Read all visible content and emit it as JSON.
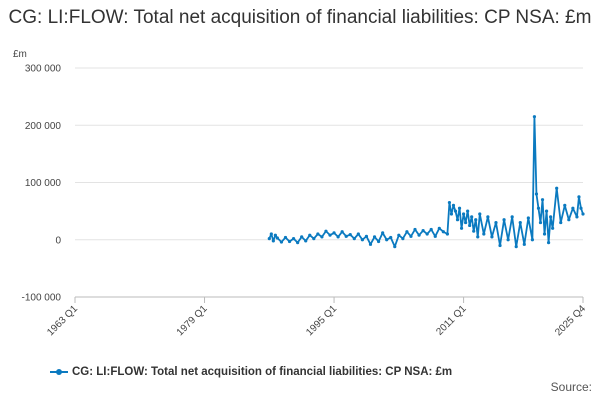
{
  "chart_data": {
    "type": "line",
    "title": "CG: LI:FLOW: Total net acquisition of financial liabilities: CP NSA: £m",
    "unit_label": "£m",
    "xlabel": "",
    "ylabel": "",
    "ylim": [
      -100000,
      300000
    ],
    "y_ticks": [
      -100000,
      0,
      100000,
      200000,
      300000
    ],
    "y_tick_labels": [
      "-100 000",
      "0",
      "100 000",
      "200 000",
      "300 000"
    ],
    "x_range": [
      1963.0,
      2025.75
    ],
    "x_ticks": [
      1963.0,
      1979.0,
      1995.0,
      2011.0,
      2025.75
    ],
    "x_tick_labels": [
      "1963 Q1",
      "1979 Q1",
      "1995 Q1",
      "2011 Q1",
      "2025 Q4"
    ],
    "grid": true,
    "legend_position": "bottom",
    "series": [
      {
        "name": "CG: LI:FLOW: Total net acquisition of financial liabilities: CP NSA: £m",
        "color": "#0b7ac0",
        "x": [
          1987.0,
          1987.25,
          1987.5,
          1987.75,
          1988.0,
          1988.5,
          1989.0,
          1989.5,
          1990.0,
          1990.5,
          1991.0,
          1991.5,
          1992.0,
          1992.5,
          1993.0,
          1993.5,
          1994.0,
          1994.5,
          1995.0,
          1995.5,
          1996.0,
          1996.5,
          1997.0,
          1997.5,
          1998.0,
          1998.5,
          1999.0,
          1999.5,
          2000.0,
          2000.5,
          2001.0,
          2001.5,
          2002.0,
          2002.5,
          2003.0,
          2003.5,
          2004.0,
          2004.5,
          2005.0,
          2005.5,
          2006.0,
          2006.5,
          2007.0,
          2007.5,
          2008.0,
          2008.5,
          2009.0,
          2009.25,
          2009.5,
          2009.75,
          2010.0,
          2010.25,
          2010.5,
          2010.75,
          2011.0,
          2011.25,
          2011.5,
          2011.75,
          2012.0,
          2012.25,
          2012.5,
          2012.75,
          2013.0,
          2013.5,
          2014.0,
          2014.5,
          2015.0,
          2015.5,
          2016.0,
          2016.5,
          2017.0,
          2017.5,
          2018.0,
          2018.5,
          2019.0,
          2019.5,
          2019.75,
          2020.0,
          2020.25,
          2020.5,
          2020.75,
          2021.0,
          2021.25,
          2021.5,
          2021.75,
          2022.0,
          2022.5,
          2023.0,
          2023.5,
          2024.0,
          2024.5,
          2025.0,
          2025.25,
          2025.5,
          2025.75
        ],
        "values": [
          2000,
          10000,
          -2000,
          8000,
          3000,
          -4000,
          4000,
          -3000,
          2000,
          -5000,
          5000,
          -2000,
          8000,
          2000,
          10000,
          5000,
          15000,
          8000,
          12000,
          5000,
          14000,
          6000,
          9000,
          2000,
          10000,
          0,
          6000,
          -8000,
          5000,
          -3000,
          12000,
          0,
          4000,
          -12000,
          8000,
          2000,
          14000,
          6000,
          18000,
          8000,
          16000,
          10000,
          18000,
          6000,
          20000,
          14000,
          10000,
          65000,
          45000,
          60000,
          50000,
          35000,
          55000,
          20000,
          45000,
          30000,
          50000,
          25000,
          40000,
          15000,
          35000,
          5000,
          45000,
          10000,
          40000,
          5000,
          30000,
          -10000,
          35000,
          0,
          40000,
          -12000,
          30000,
          -8000,
          38000,
          0,
          215000,
          80000,
          55000,
          30000,
          70000,
          10000,
          50000,
          -5000,
          40000,
          20000,
          90000,
          30000,
          60000,
          35000,
          55000,
          40000,
          75000,
          55000,
          45000
        ]
      }
    ]
  },
  "legend": {
    "label": "CG: LI:FLOW: Total net acquisition of financial liabilities: CP NSA: £m"
  },
  "source_label": "Source:"
}
